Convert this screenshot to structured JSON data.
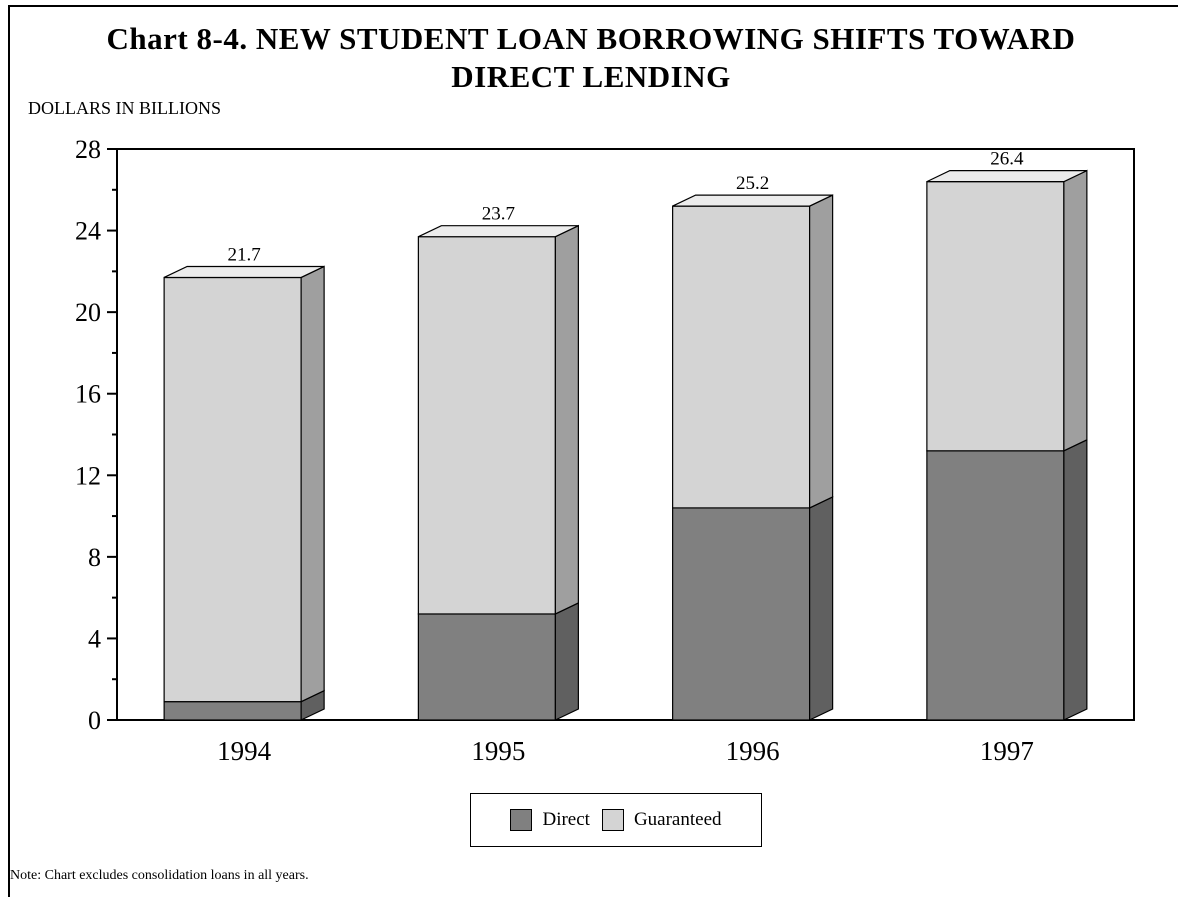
{
  "title_line1": "Chart 8-4. NEW STUDENT LOAN BORROWING SHIFTS TOWARD",
  "title_line2": "DIRECT LENDING",
  "units_label": "DOLLARS IN BILLIONS",
  "note": "Note: Chart excludes consolidation loans in all years.",
  "chart_data": {
    "type": "bar",
    "stacked": true,
    "three_d": true,
    "categories": [
      "1994",
      "1995",
      "1996",
      "1997"
    ],
    "series": [
      {
        "name": "Direct",
        "values": [
          0.9,
          5.2,
          10.4,
          13.2
        ],
        "color": "#808080"
      },
      {
        "name": "Guaranteed",
        "values": [
          20.8,
          18.5,
          14.8,
          13.2
        ],
        "color": "#d4d4d4"
      }
    ],
    "totals": [
      "21.7",
      "23.7",
      "25.2",
      "26.4"
    ],
    "ylim": [
      0,
      28
    ],
    "yticks": [
      "0",
      "4",
      "8",
      "12",
      "16",
      "20",
      "24",
      "28"
    ],
    "ylabel": "DOLLARS IN BILLIONS",
    "xlabel": "",
    "grid": false,
    "legend_position": "bottom-center"
  }
}
